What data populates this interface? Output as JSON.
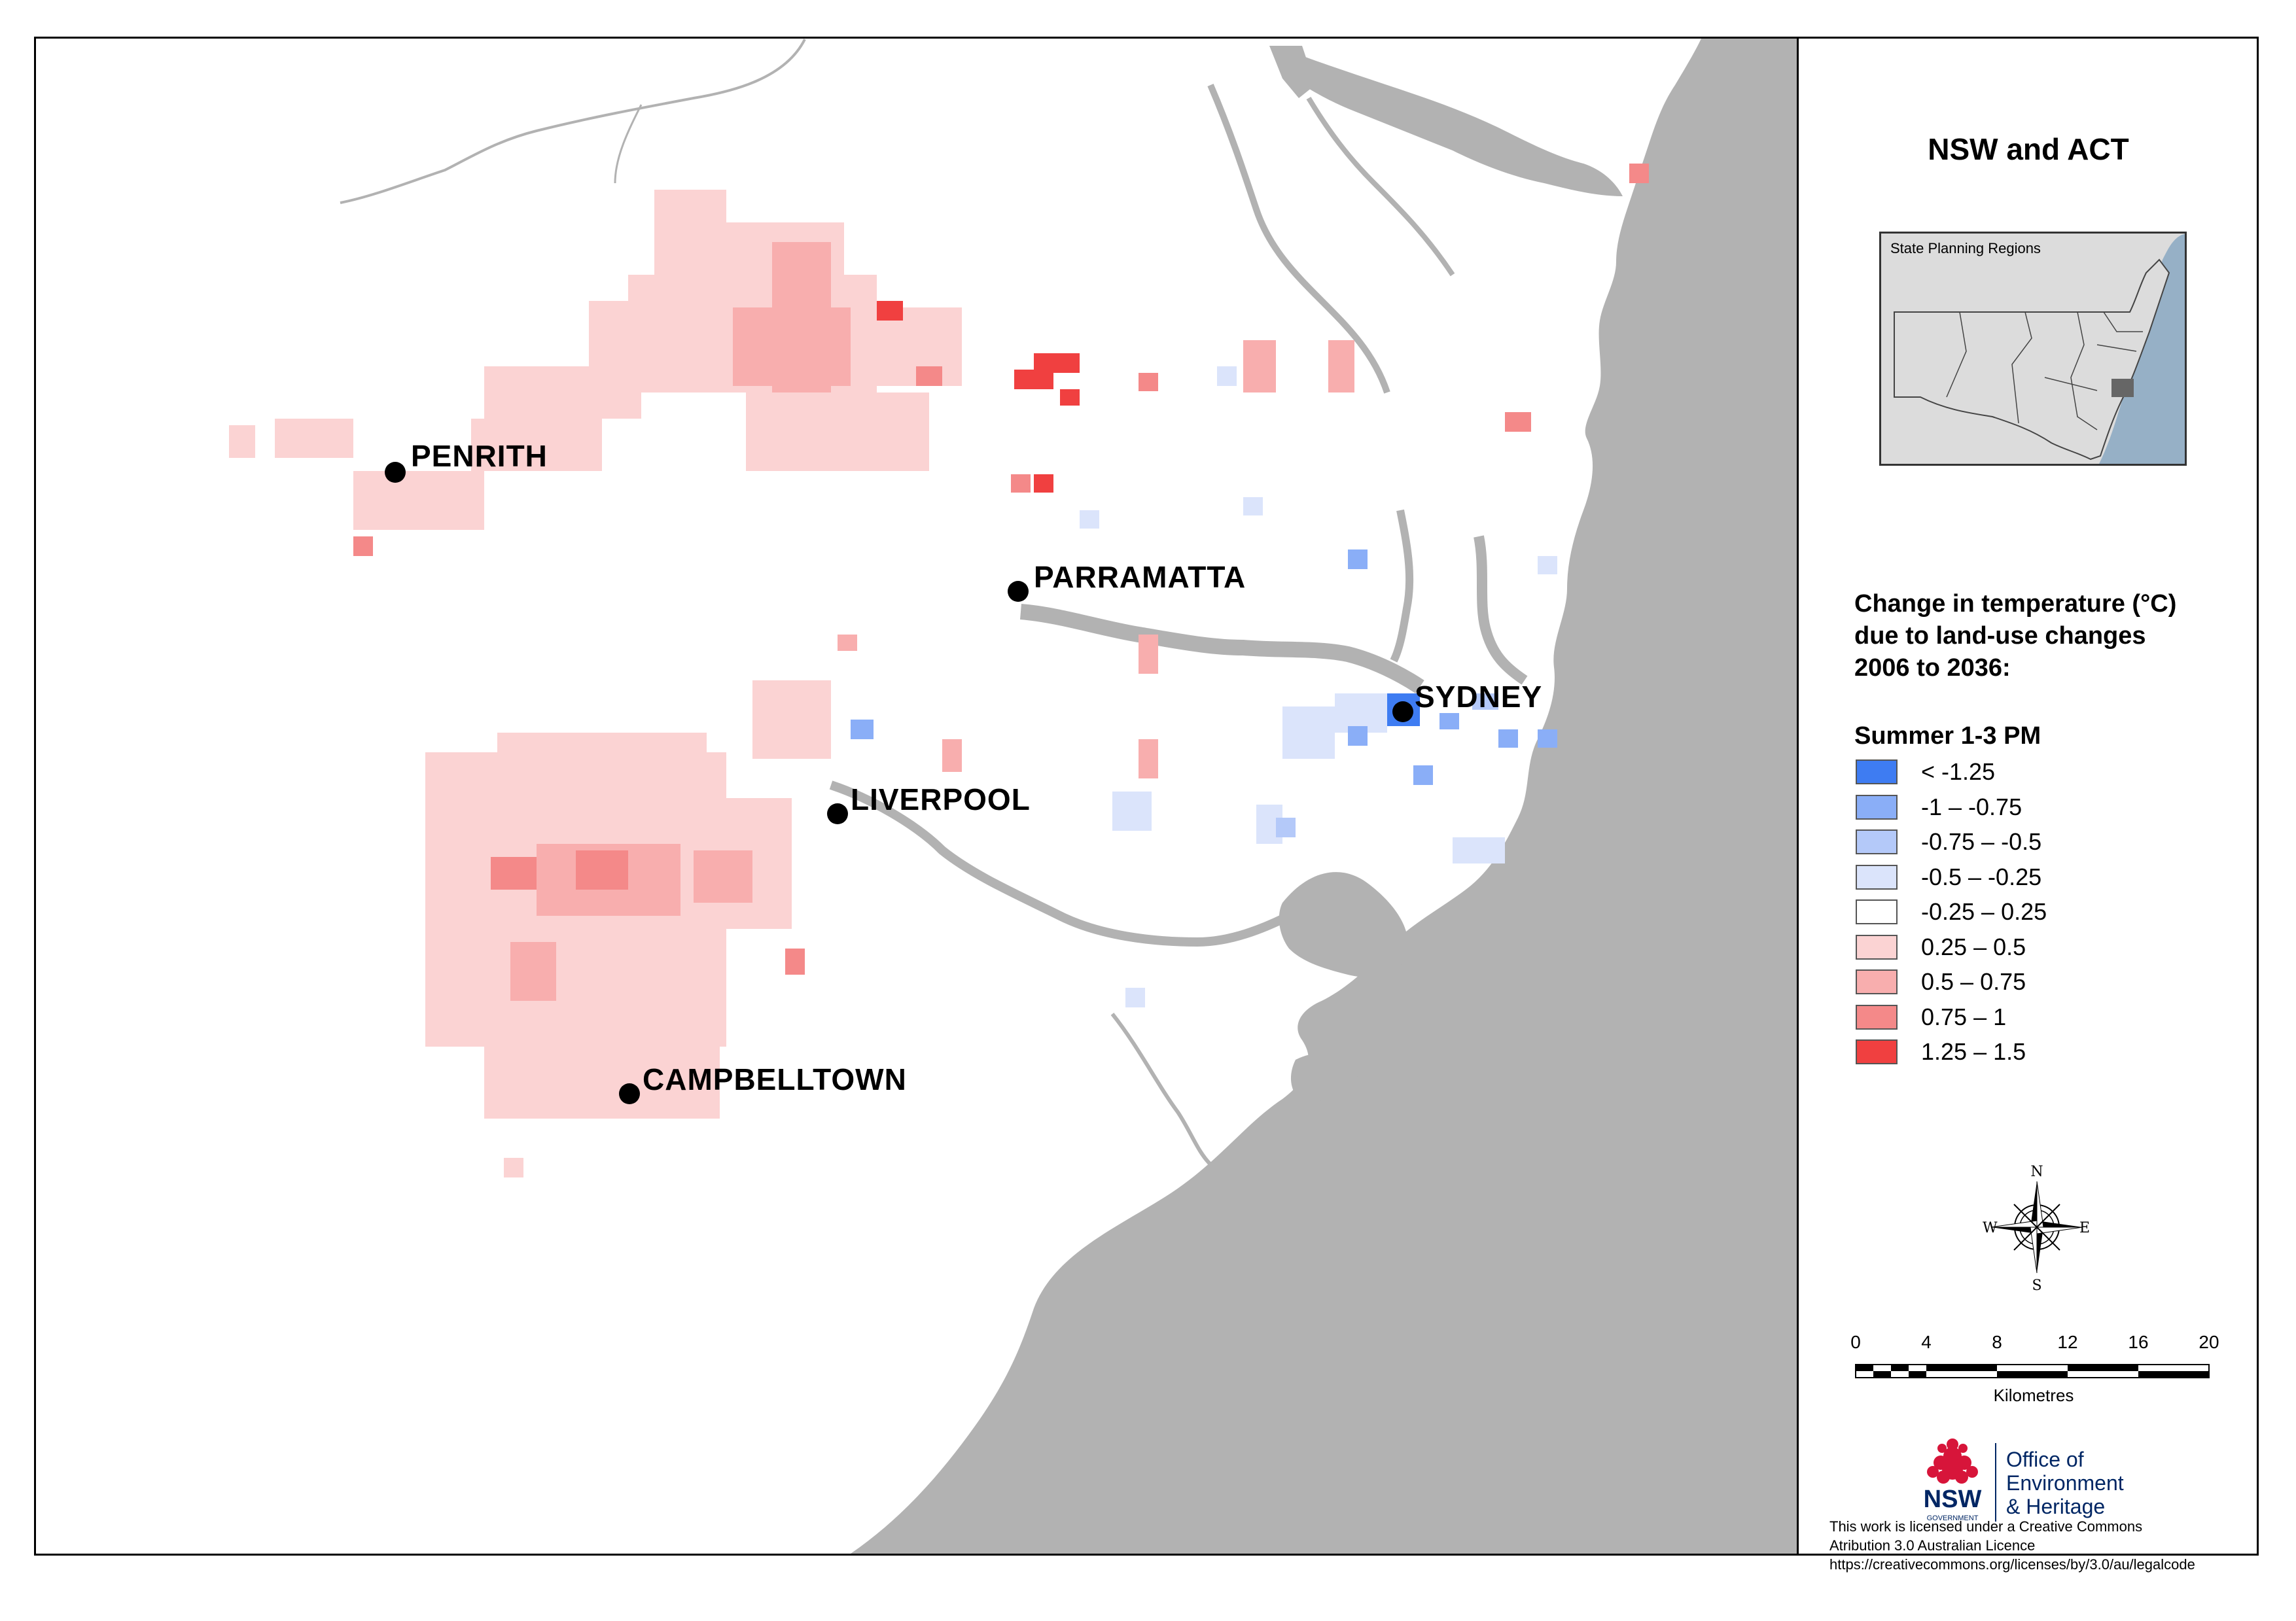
{
  "map": {
    "cities": [
      {
        "name": "PENRITH",
        "id": "penrith"
      },
      {
        "name": "PARRAMATTA",
        "id": "parramatta"
      },
      {
        "name": "SYDNEY",
        "id": "sydney"
      },
      {
        "name": "LIVERPOOL",
        "id": "liverpool"
      },
      {
        "name": "CAMPBELLTOWN",
        "id": "campbelltown"
      }
    ],
    "colors": {
      "ocean": "#b2b2b2",
      "land": "#ffffff",
      "rivers": "#b2b2b2"
    }
  },
  "panel": {
    "title": "NSW and ACT",
    "inset_label": "State Planning Regions",
    "legend": {
      "title_lines": [
        "Change in temperature (°C)",
        "due to land-use changes",
        "2006 to 2036:"
      ],
      "subtitle": "Summer 1-3 PM",
      "classes": [
        {
          "label": " < -1.25",
          "color": "#3e7cf2"
        },
        {
          "label": "-1 – -0.75",
          "color": "#8aaef7"
        },
        {
          "label": "-0.75 – -0.5",
          "color": "#b4c9f9"
        },
        {
          "label": "-0.5 – -0.25",
          "color": "#dbe4fb"
        },
        {
          "label": "-0.25 – 0.25",
          "color": "#ffffff"
        },
        {
          "label": "0.25 – 0.5",
          "color": "#fbd3d3"
        },
        {
          "label": "0.5 – 0.75",
          "color": "#f8aeae"
        },
        {
          "label": "0.75 – 1",
          "color": "#f48989"
        },
        {
          "label": "1.25 – 1.5",
          "color": "#f04040"
        }
      ]
    },
    "compass": {
      "n": "N",
      "s": "S",
      "e": "E",
      "w": "W"
    },
    "scale": {
      "ticks": [
        "0",
        "4",
        "8",
        "12",
        "16",
        "20"
      ],
      "unit": "Kilometres"
    },
    "logo": {
      "nsw": "NSW",
      "government": "GOVERNMENT",
      "office_lines": [
        "Office of",
        "Environment",
        "& Heritage"
      ]
    },
    "license_lines": [
      "This work is licensed under a Creative Commons",
      "Atribution 3.0 Australian Licence",
      "https://creativecommons.org/licenses/by/3.0/au/legalcode"
    ]
  }
}
